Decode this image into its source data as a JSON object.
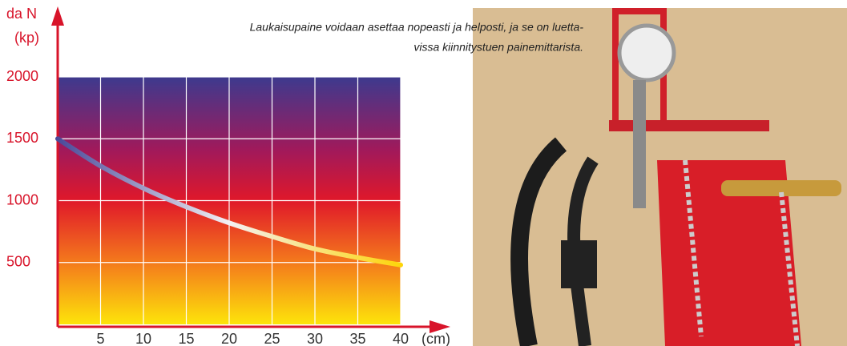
{
  "chart_data": {
    "type": "line",
    "y_label": [
      "da N",
      "(kp)"
    ],
    "x_label": "(cm)",
    "annotation": [
      "Laukaisupaine voidaan asettaa nopeasti ja helposti, ja se on luetta-",
      "vissa kiinnitystuen painemittarista."
    ],
    "x": [
      0,
      5,
      10,
      15,
      20,
      25,
      30,
      35,
      40
    ],
    "series": [
      {
        "values": [
          1500,
          1280,
          1100,
          950,
          820,
          710,
          610,
          540,
          480
        ]
      }
    ],
    "xlim": [
      0,
      40
    ],
    "xticks": [
      5,
      10,
      15,
      20,
      25,
      30,
      35,
      40
    ],
    "ylim": [
      0,
      2000
    ],
    "yticks": [
      500,
      1000,
      1500,
      2000
    ],
    "grid": true
  }
}
